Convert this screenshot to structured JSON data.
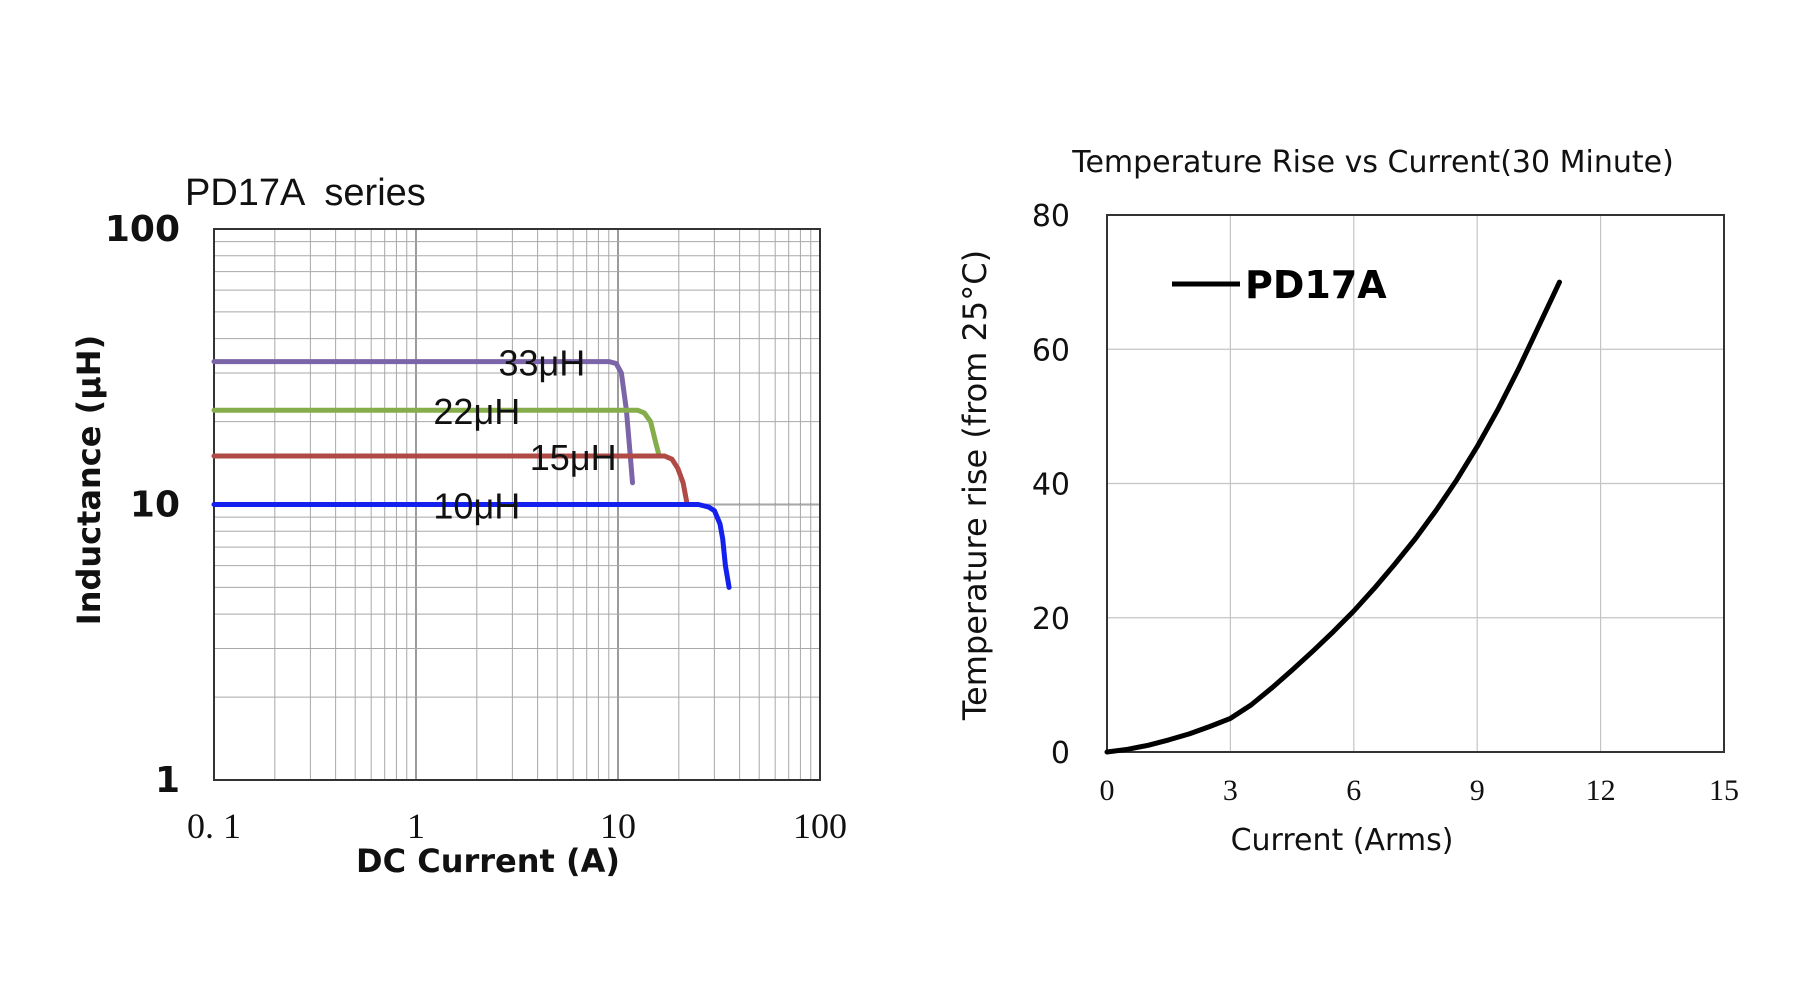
{
  "chart_data": [
    {
      "type": "line",
      "title": "PD17A  series",
      "xlabel": "DC Current (A)",
      "ylabel": "Inductance (μH)",
      "x_scale": "log",
      "y_scale": "log",
      "xlim": [
        0.1,
        100
      ],
      "ylim": [
        1,
        100
      ],
      "x_tick_labels": [
        "0. 1",
        "1",
        "10",
        "100"
      ],
      "y_tick_labels": [
        "1",
        "10",
        "100"
      ],
      "grid": true,
      "colors": {
        "33μH": "#7b64a8",
        "22μH": "#86ad4c",
        "15μH": "#b04a44",
        "10μH": "#1420ee"
      },
      "series": [
        {
          "name": "33μH",
          "x": [
            0.1,
            1,
            5,
            9,
            9.8,
            10.4,
            11,
            11.5,
            11.8
          ],
          "y": [
            33,
            33,
            33,
            33,
            32.5,
            30,
            22,
            15,
            12
          ]
        },
        {
          "name": "22μH",
          "x": [
            0.1,
            1,
            5,
            12.5,
            13.5,
            14.5,
            15.3,
            16
          ],
          "y": [
            22,
            22,
            22,
            22,
            21.5,
            20,
            17,
            15
          ]
        },
        {
          "name": "15μH",
          "x": [
            0.1,
            1,
            5,
            17,
            18.5,
            19.8,
            21,
            22
          ],
          "y": [
            15,
            15,
            15,
            15,
            14.6,
            13.5,
            12,
            10
          ]
        },
        {
          "name": "10μH",
          "x": [
            0.1,
            1,
            10,
            25,
            28,
            30,
            32,
            33,
            34,
            35.5
          ],
          "y": [
            10,
            10,
            10,
            10,
            9.8,
            9.5,
            8.5,
            7.5,
            6,
            5
          ]
        }
      ]
    },
    {
      "type": "line",
      "title": "Temperature Rise vs Current(30 Minute)",
      "xlabel": "Current (Arms)",
      "ylabel": "Temperature rise (from 25°C)",
      "xlim": [
        0,
        15
      ],
      "ylim": [
        0,
        80
      ],
      "x_ticks": [
        0,
        3,
        6,
        9,
        12,
        15
      ],
      "y_ticks": [
        0,
        20,
        40,
        60,
        80
      ],
      "grid": true,
      "legend": "top-left",
      "series": [
        {
          "name": "PD17A",
          "color": "#000000",
          "x": [
            0,
            0.5,
            1,
            1.5,
            2,
            2.5,
            3,
            3.5,
            4,
            4.5,
            5,
            5.5,
            6,
            6.5,
            7,
            7.5,
            8,
            8.5,
            9,
            9.5,
            10,
            10.5,
            11
          ],
          "y": [
            0,
            0.4,
            1,
            1.8,
            2.7,
            3.8,
            5,
            7,
            9.5,
            12.2,
            15,
            17.9,
            21,
            24.4,
            28,
            31.8,
            36,
            40.5,
            45.5,
            51,
            57,
            63.5,
            70
          ]
        }
      ]
    }
  ]
}
